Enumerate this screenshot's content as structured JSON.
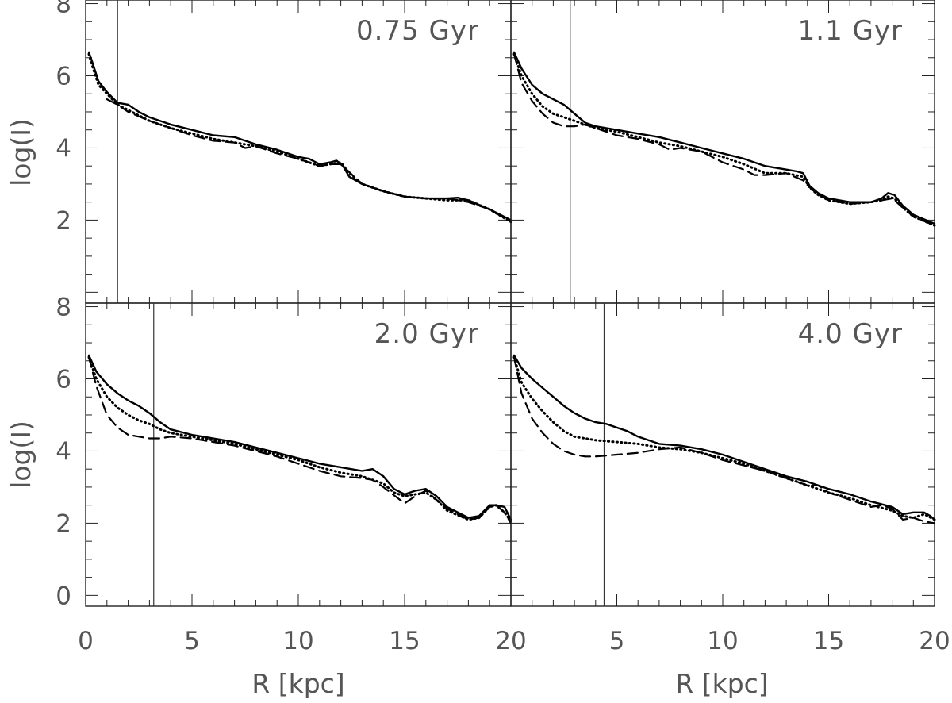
{
  "chart_data": {
    "type": "line",
    "layout": "2x2 panels, shared axes",
    "xlabel": "R [kpc]",
    "ylabel": "log(I)",
    "xlim": [
      0,
      20
    ],
    "ylim": [
      -0.3,
      8.1
    ],
    "x_ticks": [
      0,
      5,
      10,
      15,
      20
    ],
    "x_tick_labels": [
      "0",
      "5",
      "10",
      "15",
      "20"
    ],
    "y_ticks": [
      0,
      2,
      4,
      6,
      8
    ],
    "y_tick_labels": [
      "0",
      "2",
      "4",
      "6",
      "8"
    ],
    "series_styles": [
      {
        "name": "solid",
        "style": "solid"
      },
      {
        "name": "dotted",
        "style": "dotted"
      },
      {
        "name": "dashed",
        "style": "dashed"
      }
    ],
    "panels": [
      {
        "label": "0.75 Gyr",
        "vline_x": 1.5,
        "series": [
          {
            "name": "solid",
            "x": [
              0.15,
              0.3,
              0.6,
              1.0,
              1.5,
              2.0,
              2.5,
              3,
              4,
              5,
              6,
              7,
              8,
              9,
              10,
              10.5,
              11,
              11.5,
              11.8,
              12.1,
              12.4,
              13,
              14,
              15,
              16,
              17,
              17.5,
              18,
              19,
              20
            ],
            "y": [
              6.65,
              6.4,
              5.85,
              5.55,
              5.25,
              5.2,
              5.0,
              4.85,
              4.65,
              4.5,
              4.35,
              4.3,
              4.1,
              3.95,
              3.75,
              3.7,
              3.55,
              3.6,
              3.65,
              3.5,
              3.2,
              3.0,
              2.8,
              2.65,
              2.6,
              2.6,
              2.62,
              2.55,
              2.3,
              2.0
            ]
          },
          {
            "name": "dotted",
            "x": [
              0.15,
              0.3,
              0.6,
              1.0,
              1.5,
              2,
              3,
              4,
              5,
              6,
              7,
              8,
              9,
              10,
              11,
              11.5,
              12,
              12.4,
              13,
              14,
              15,
              16,
              17,
              18,
              19,
              20
            ],
            "y": [
              6.6,
              6.3,
              5.75,
              5.5,
              5.2,
              5.05,
              4.75,
              4.55,
              4.4,
              4.25,
              4.15,
              4.05,
              3.9,
              3.7,
              3.5,
              3.55,
              3.6,
              3.3,
              3.0,
              2.8,
              2.65,
              2.6,
              2.55,
              2.55,
              2.3,
              1.95
            ]
          },
          {
            "name": "dashed",
            "x": [
              1.0,
              1.5,
              2,
              3,
              4,
              5,
              6,
              7,
              7.5,
              8,
              9,
              10,
              11,
              11.5,
              12,
              13,
              14,
              15,
              16,
              17,
              18,
              19,
              20
            ],
            "y": [
              5.35,
              5.2,
              5.0,
              4.75,
              4.55,
              4.35,
              4.2,
              4.15,
              4.0,
              4.05,
              3.85,
              3.7,
              3.5,
              3.55,
              3.55,
              3.0,
              2.8,
              2.65,
              2.6,
              2.6,
              2.5,
              2.3,
              1.95
            ]
          }
        ]
      },
      {
        "label": "1.1 Gyr",
        "vline_x": 2.8,
        "series": [
          {
            "name": "solid",
            "x": [
              0.15,
              0.5,
              1,
              1.5,
              2,
              2.5,
              3,
              3.5,
              4,
              5,
              6,
              7,
              8,
              9,
              10,
              11,
              12,
              13,
              13.5,
              13.8,
              14.1,
              14.5,
              15,
              16,
              17,
              17.5,
              17.8,
              18.1,
              18.5,
              19,
              20
            ],
            "y": [
              6.65,
              6.2,
              5.75,
              5.5,
              5.35,
              5.2,
              4.95,
              4.7,
              4.6,
              4.5,
              4.4,
              4.3,
              4.15,
              4.0,
              3.85,
              3.7,
              3.5,
              3.4,
              3.35,
              3.3,
              2.95,
              2.75,
              2.6,
              2.5,
              2.5,
              2.6,
              2.75,
              2.7,
              2.4,
              2.15,
              1.9
            ]
          },
          {
            "name": "dotted",
            "x": [
              0.15,
              0.5,
              1,
              1.5,
              2,
              2.5,
              3,
              3.5,
              4,
              5,
              6,
              7,
              8,
              9,
              10,
              11,
              12,
              13,
              13.8,
              14.1,
              14.5,
              15,
              16,
              17,
              17.5,
              17.8,
              18.1,
              18.5,
              19,
              20
            ],
            "y": [
              6.6,
              6.0,
              5.5,
              5.15,
              4.95,
              4.85,
              4.75,
              4.65,
              4.55,
              4.45,
              4.3,
              4.15,
              4.05,
              3.9,
              3.75,
              3.55,
              3.3,
              3.3,
              3.2,
              2.9,
              2.7,
              2.55,
              2.45,
              2.5,
              2.55,
              2.65,
              2.6,
              2.35,
              2.1,
              1.85
            ]
          },
          {
            "name": "dashed",
            "x": [
              0.15,
              0.5,
              1,
              1.5,
              2,
              2.5,
              3,
              3.5,
              4,
              5,
              6,
              7,
              7.5,
              8,
              9,
              10,
              11,
              11.5,
              12,
              13,
              13.8,
              14.2,
              15,
              16,
              17,
              17.5,
              18,
              18.5,
              19,
              20
            ],
            "y": [
              6.6,
              5.8,
              5.3,
              4.95,
              4.7,
              4.6,
              4.6,
              4.65,
              4.55,
              4.35,
              4.25,
              4.1,
              3.95,
              4.0,
              3.9,
              3.6,
              3.4,
              3.25,
              3.25,
              3.3,
              3.1,
              2.85,
              2.55,
              2.45,
              2.5,
              2.55,
              2.6,
              2.35,
              2.1,
              1.85
            ]
          }
        ]
      },
      {
        "label": "2.0 Gyr",
        "vline_x": 3.2,
        "series": [
          {
            "name": "solid",
            "x": [
              0.15,
              0.5,
              1,
              1.5,
              2,
              2.5,
              3,
              3.5,
              4,
              5,
              6,
              7,
              8,
              9,
              10,
              11,
              12,
              13,
              13.5,
              14,
              14.5,
              15,
              15.5,
              16,
              16.5,
              17,
              18,
              18.5,
              19,
              19.3,
              19.7,
              20
            ],
            "y": [
              6.65,
              6.2,
              5.85,
              5.6,
              5.4,
              5.25,
              5.05,
              4.8,
              4.6,
              4.45,
              4.35,
              4.25,
              4.1,
              3.95,
              3.8,
              3.65,
              3.55,
              3.45,
              3.5,
              3.3,
              2.95,
              2.8,
              2.9,
              2.95,
              2.75,
              2.45,
              2.15,
              2.2,
              2.5,
              2.5,
              2.45,
              2.1
            ]
          },
          {
            "name": "dotted",
            "x": [
              0.15,
              0.5,
              1,
              1.5,
              2,
              2.5,
              3,
              3.5,
              4,
              5,
              6,
              7,
              8,
              9,
              10,
              11,
              12,
              13,
              14,
              14.5,
              15,
              15.5,
              16,
              16.5,
              17,
              18,
              18.5,
              19,
              19.3,
              19.7,
              20
            ],
            "y": [
              6.6,
              6.0,
              5.5,
              5.2,
              5.0,
              4.85,
              4.75,
              4.6,
              4.5,
              4.4,
              4.3,
              4.2,
              4.05,
              3.9,
              3.75,
              3.55,
              3.4,
              3.3,
              3.1,
              2.85,
              2.75,
              2.8,
              2.85,
              2.65,
              2.35,
              2.1,
              2.15,
              2.45,
              2.5,
              2.3,
              2.05
            ]
          },
          {
            "name": "dashed",
            "x": [
              0.15,
              0.5,
              1,
              1.5,
              2,
              2.5,
              3,
              3.5,
              4,
              5,
              6,
              7,
              8,
              9,
              10,
              11,
              12,
              13,
              13.5,
              14,
              15,
              15.5,
              16,
              17,
              18,
              18.5,
              19,
              19.3,
              19.7,
              20
            ],
            "y": [
              6.6,
              5.8,
              5.0,
              4.65,
              4.45,
              4.4,
              4.35,
              4.35,
              4.4,
              4.35,
              4.25,
              4.15,
              4.0,
              3.85,
              3.65,
              3.45,
              3.3,
              3.25,
              3.2,
              3.0,
              2.55,
              2.75,
              2.9,
              2.4,
              2.1,
              2.15,
              2.45,
              2.5,
              2.3,
              2.0
            ]
          }
        ]
      },
      {
        "label": "4.0 Gyr",
        "vline_x": 4.4,
        "series": [
          {
            "name": "solid",
            "x": [
              0.15,
              0.5,
              1,
              1.5,
              2,
              2.5,
              3,
              3.5,
              4,
              4.5,
              5,
              5.5,
              6,
              7,
              8,
              9,
              10,
              11,
              12,
              13,
              14,
              15,
              16,
              17,
              18,
              18.5,
              19,
              19.5,
              19.8,
              20
            ],
            "y": [
              6.65,
              6.3,
              6.0,
              5.75,
              5.5,
              5.25,
              5.05,
              4.9,
              4.8,
              4.75,
              4.65,
              4.55,
              4.4,
              4.2,
              4.15,
              4.05,
              3.9,
              3.7,
              3.5,
              3.3,
              3.15,
              2.95,
              2.8,
              2.6,
              2.45,
              2.25,
              2.3,
              2.3,
              2.2,
              2.1
            ]
          },
          {
            "name": "dotted",
            "x": [
              0.15,
              0.5,
              1,
              1.5,
              2,
              2.5,
              3,
              3.5,
              4,
              5,
              6,
              7,
              8,
              9,
              10,
              11,
              12,
              13,
              14,
              15,
              16,
              17,
              18,
              18.5,
              19,
              19.5,
              20
            ],
            "y": [
              6.6,
              5.9,
              5.45,
              5.1,
              4.8,
              4.55,
              4.4,
              4.35,
              4.3,
              4.25,
              4.2,
              4.1,
              4.05,
              3.95,
              3.8,
              3.65,
              3.45,
              3.25,
              3.05,
              2.85,
              2.7,
              2.5,
              2.35,
              2.2,
              2.15,
              2.25,
              2.1
            ]
          },
          {
            "name": "dashed",
            "x": [
              0.15,
              0.5,
              1,
              1.5,
              2,
              2.5,
              3,
              3.5,
              4,
              5,
              6,
              7,
              8,
              9,
              10,
              11,
              12,
              13,
              14,
              14.5,
              15,
              16,
              17,
              17.5,
              18,
              18.5,
              19,
              19.5,
              20
            ],
            "y": [
              6.6,
              5.6,
              4.9,
              4.5,
              4.2,
              4.0,
              3.9,
              3.85,
              3.85,
              3.9,
              3.95,
              4.05,
              4.1,
              3.95,
              3.75,
              3.6,
              3.45,
              3.25,
              3.05,
              3.05,
              2.85,
              2.65,
              2.45,
              2.5,
              2.4,
              2.1,
              2.15,
              2.05,
              2.0
            ]
          }
        ]
      }
    ]
  }
}
